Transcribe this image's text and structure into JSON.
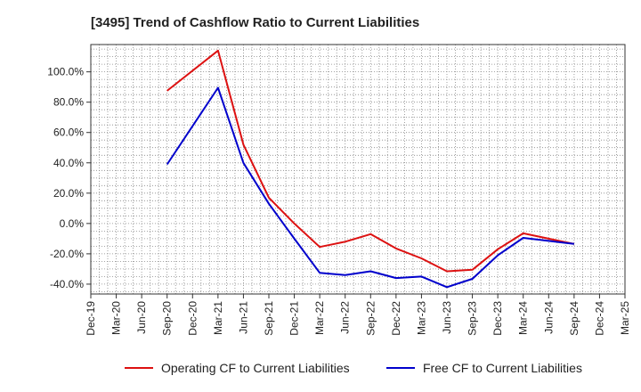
{
  "chart_data": {
    "type": "line",
    "title": "[3495]  Trend of Cashflow Ratio to Current Liabilities",
    "xlabel": "",
    "ylabel": "",
    "x_ticks": [
      "Dec-19",
      "Mar-20",
      "Jun-20",
      "Sep-20",
      "Dec-20",
      "Mar-21",
      "Jun-21",
      "Sep-21",
      "Dec-21",
      "Mar-22",
      "Jun-22",
      "Sep-22",
      "Dec-22",
      "Mar-23",
      "Jun-23",
      "Sep-23",
      "Dec-23",
      "Mar-24",
      "Jun-24",
      "Sep-24",
      "Dec-24",
      "Mar-25"
    ],
    "y_ticks": [
      "100.0%",
      "80.0%",
      "60.0%",
      "40.0%",
      "20.0%",
      "0.0%",
      "-20.0%",
      "-40.0%"
    ],
    "y_tick_values": [
      100,
      80,
      60,
      40,
      20,
      0,
      -20,
      -40
    ],
    "ylim": [
      -46.5,
      118
    ],
    "grid": true,
    "legend_position": "bottom",
    "series": [
      {
        "name": "Operating CF to Current Liabilities",
        "color": "#dd1111",
        "x": [
          "Sep-20",
          "Mar-21",
          "Jun-21",
          "Sep-21",
          "Dec-21",
          "Mar-22",
          "Jun-22",
          "Sep-22",
          "Dec-22",
          "Mar-23",
          "Jun-23",
          "Sep-23",
          "Dec-23",
          "Mar-24",
          "Jun-24",
          "Sep-24"
        ],
        "values": [
          87.5,
          114.0,
          52.0,
          17.0,
          0.0,
          -15.5,
          -12.0,
          -7.0,
          -16.5,
          -23.0,
          -31.5,
          -30.5,
          -17.0,
          -6.5,
          -10.0,
          -13.5
        ]
      },
      {
        "name": "Free CF to Current Liabilities",
        "color": "#0000cc",
        "x": [
          "Sep-20",
          "Mar-21",
          "Jun-21",
          "Sep-21",
          "Dec-21",
          "Mar-22",
          "Jun-22",
          "Sep-22",
          "Dec-22",
          "Mar-23",
          "Jun-23",
          "Sep-23",
          "Dec-23",
          "Mar-24",
          "Jun-24",
          "Sep-24"
        ],
        "values": [
          39.0,
          89.5,
          40.0,
          13.0,
          -10.0,
          -32.5,
          -34.0,
          -31.5,
          -36.0,
          -35.0,
          -42.0,
          -36.5,
          -21.0,
          -9.5,
          -11.5,
          -13.5
        ]
      }
    ]
  }
}
